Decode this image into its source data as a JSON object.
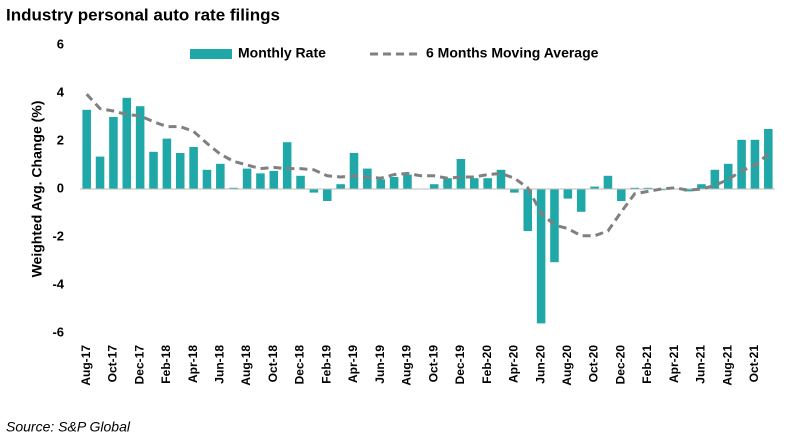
{
  "chart_data": {
    "type": "bar_line",
    "title": "Industry personal auto rate filings",
    "y_label": "Weighted Avg. Change (%)",
    "source": "Source: S&P Global",
    "categories": [
      "Aug-17",
      null,
      "Oct-17",
      null,
      "Dec-17",
      null,
      "Feb-18",
      null,
      "Apr-18",
      null,
      "Jun-18",
      null,
      "Aug-18",
      null,
      "Oct-18",
      null,
      "Dec-18",
      null,
      "Feb-19",
      null,
      "Apr-19",
      null,
      "Jun-19",
      null,
      "Aug-19",
      null,
      "Oct-19",
      null,
      "Dec-19",
      null,
      "Feb-20",
      null,
      "Apr-20",
      null,
      "Jun-20",
      null,
      "Aug-20",
      null,
      "Oct-20",
      null,
      "Dec-20",
      null,
      "Feb-21",
      null,
      "Apr-21",
      null,
      "Jun-21",
      null,
      "Aug-21",
      null,
      "Oct-21",
      null
    ],
    "series": [
      {
        "name": "Monthly Rate",
        "kind": "bar",
        "color": "#20a8a8",
        "values": [
          3.3,
          1.35,
          3.0,
          3.8,
          3.45,
          1.55,
          2.1,
          1.5,
          1.75,
          0.8,
          1.05,
          0.05,
          0.85,
          0.65,
          0.75,
          1.95,
          0.55,
          -0.15,
          -0.5,
          0.2,
          1.5,
          0.85,
          0.4,
          0.5,
          0.6,
          0.0,
          0.2,
          0.45,
          1.25,
          0.45,
          0.45,
          0.8,
          -0.15,
          -1.75,
          -5.6,
          -3.05,
          -0.4,
          -0.95,
          0.1,
          0.55,
          -0.5,
          0.05,
          0.05,
          -0.05,
          0.0,
          -0.1,
          0.2,
          0.8,
          1.05,
          2.05,
          2.05,
          2.5
        ]
      },
      {
        "name": "6 Months Moving Average",
        "kind": "line",
        "color": "#808080",
        "values": [
          3.95,
          3.35,
          3.25,
          3.1,
          3.05,
          2.8,
          2.6,
          2.6,
          2.4,
          1.9,
          1.45,
          1.15,
          1.0,
          0.85,
          0.9,
          0.85,
          0.85,
          0.8,
          0.55,
          0.5,
          0.55,
          0.5,
          0.45,
          0.6,
          0.65,
          0.55,
          0.55,
          0.45,
          0.5,
          0.5,
          0.6,
          0.65,
          0.45,
          0.05,
          -1.0,
          -1.5,
          -1.65,
          -1.95,
          -1.95,
          -1.75,
          -0.95,
          -0.2,
          -0.1,
          0.0,
          0.05,
          -0.05,
          0.0,
          0.15,
          0.4,
          0.75,
          1.0,
          1.45
        ]
      }
    ],
    "ylim": [
      -6,
      6
    ],
    "yticks": [
      -6,
      -4,
      -2,
      0,
      2,
      4,
      6
    ],
    "grid": false,
    "legend": "top"
  }
}
